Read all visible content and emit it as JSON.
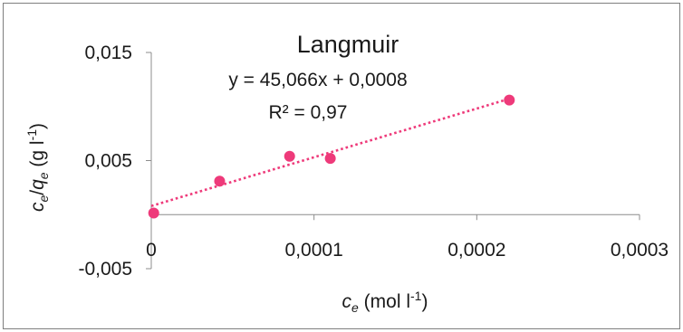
{
  "chart_data": {
    "type": "scatter",
    "title": "Langmuir",
    "xlabel": {
      "main": "c",
      "sub": "e",
      "unit": " (mol l",
      "exp": "-1",
      "close": ")"
    },
    "ylabel": {
      "a": "c",
      "a_sub": "e",
      "slash": "/",
      "b": "q",
      "b_sub": "e",
      "unit": " (g l",
      "exp": "-1",
      "close": ")"
    },
    "xlim": [
      0,
      0.0003
    ],
    "ylim": [
      -0.005,
      0.015
    ],
    "x_ticks": [
      0,
      0.0001,
      0.0002,
      0.0003
    ],
    "x_tick_labels": [
      "0",
      "0,0001",
      "0,0002",
      "0,0003"
    ],
    "y_ticks": [
      -0.005,
      0.005,
      0.015
    ],
    "y_tick_labels": [
      "-0,005",
      "0,005",
      "0,015"
    ],
    "grid": false,
    "legend": "none",
    "series": [
      {
        "points": [
          {
            "x": 1.5e-06,
            "y": 0.00015
          },
          {
            "x": 4.2e-05,
            "y": 0.0031
          },
          {
            "x": 8.5e-05,
            "y": 0.0054
          },
          {
            "x": 0.00011,
            "y": 0.0052
          },
          {
            "x": 0.00022,
            "y": 0.0106
          }
        ],
        "color": "#ee3a7a"
      }
    ],
    "trendline": {
      "type": "linear",
      "slope": 45.066,
      "intercept": 0.0008,
      "x_range": [
        0,
        0.00022
      ],
      "color": "#ee3a7a",
      "style": "dotted",
      "equation_text": "y = 45,066x + 0,0008",
      "r2_text": "R² = 0,97"
    }
  }
}
